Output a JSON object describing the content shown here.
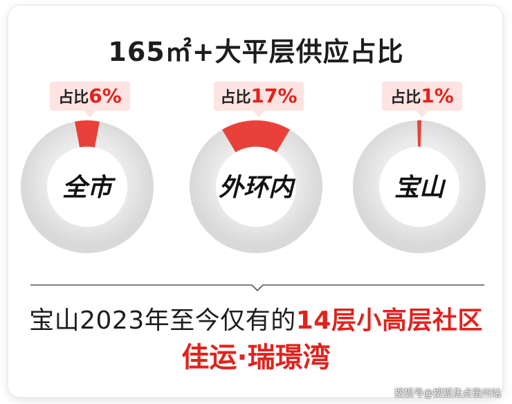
{
  "title": "165㎡+大平层供应占比",
  "chart_data": {
    "type": "pie",
    "title": "165㎡+大平层供应占比",
    "badge_prefix": "占比",
    "colors": {
      "slice": "#e8413a",
      "ring": "#e6e6e6",
      "badge_bg": "#fde3e1",
      "badge_text": "#e0231c"
    },
    "categories": [
      "全市",
      "外环内",
      "宝山"
    ],
    "values": [
      6,
      17,
      1
    ],
    "value_labels": [
      "6%",
      "17%",
      "1%"
    ]
  },
  "summary": {
    "prefix": "宝山2023年至今仅有的",
    "highlight": "14层小高层社区"
  },
  "project_name": "佳运·瑞璟湾",
  "watermark": "搜狐号@搜狐焦点宿州站"
}
